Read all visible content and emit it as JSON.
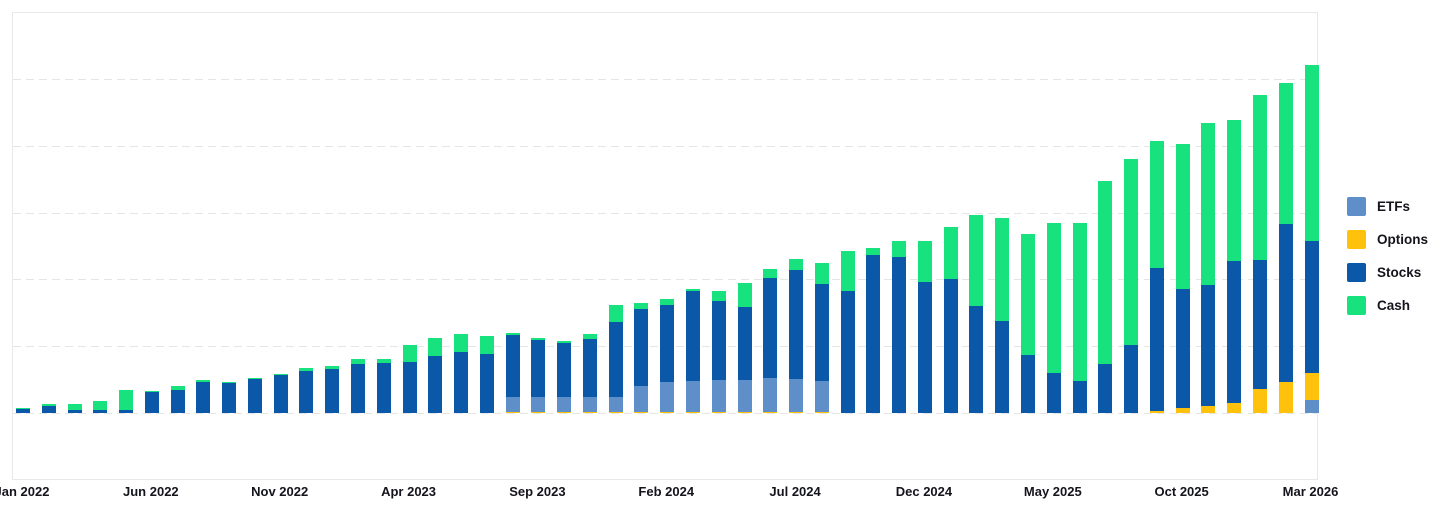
{
  "legend": {
    "items": [
      {
        "label": "ETFs",
        "color": "#5E8FC9"
      },
      {
        "label": "Options",
        "color": "#FFC20C"
      },
      {
        "label": "Stocks",
        "color": "#0B57A8"
      },
      {
        "label": "Cash",
        "color": "#17E27D"
      }
    ]
  },
  "chart_data": {
    "type": "bar",
    "stacked": true,
    "title": "",
    "xlabel": "",
    "ylabel": "",
    "y_axis": {
      "tick_labels_visible": false,
      "ylim": [
        -1,
        6
      ],
      "gridlines_at": [
        0,
        1,
        2,
        3,
        4,
        5
      ],
      "grid": true
    },
    "legend_position": "right",
    "series_colors": {
      "etfs": "#5E8FC9",
      "options": "#FFC20C",
      "stocks": "#0B57A8",
      "cash": "#17E27D"
    },
    "x_tick_labels": [
      "Jan 2022",
      "Jun 2022",
      "Nov 2022",
      "Apr 2023",
      "Sep 2023",
      "Feb 2024",
      "Jul 2024",
      "Dec 2024",
      "May 2025",
      "Oct 2025",
      "Mar 2026"
    ],
    "x_tick_every": 5,
    "bars": [
      {
        "month": "Jan 2022",
        "segments": [
          [
            "stocks",
            0.06
          ],
          [
            "cash",
            0.02
          ]
        ]
      },
      {
        "month": "Feb 2022",
        "segments": [
          [
            "stocks",
            0.1
          ],
          [
            "cash",
            0.03
          ]
        ]
      },
      {
        "month": "Mar 2022",
        "segments": [
          [
            "stocks",
            0.05
          ],
          [
            "cash",
            0.08
          ]
        ]
      },
      {
        "month": "Apr 2022",
        "segments": [
          [
            "stocks",
            0.05
          ],
          [
            "cash",
            0.13
          ]
        ]
      },
      {
        "month": "May 2022",
        "segments": [
          [
            "stocks",
            0.05
          ],
          [
            "cash",
            0.3
          ]
        ]
      },
      {
        "month": "Jun 2022",
        "segments": [
          [
            "stocks",
            0.31
          ],
          [
            "cash",
            0.02
          ]
        ]
      },
      {
        "month": "Jul 2022",
        "segments": [
          [
            "stocks",
            0.34
          ],
          [
            "cash",
            0.06
          ]
        ]
      },
      {
        "month": "Aug 2022",
        "segments": [
          [
            "stocks",
            0.46
          ],
          [
            "cash",
            0.03
          ]
        ]
      },
      {
        "month": "Sep 2022",
        "segments": [
          [
            "stocks",
            0.45
          ],
          [
            "cash",
            0.02
          ]
        ]
      },
      {
        "month": "Oct 2022",
        "segments": [
          [
            "stocks",
            0.51
          ],
          [
            "cash",
            0.02
          ]
        ]
      },
      {
        "month": "Nov 2022",
        "segments": [
          [
            "stocks",
            0.57
          ],
          [
            "cash",
            0.02
          ]
        ]
      },
      {
        "month": "Dec 2022",
        "segments": [
          [
            "stocks",
            0.63
          ],
          [
            "cash",
            0.05
          ]
        ]
      },
      {
        "month": "Jan 2023",
        "segments": [
          [
            "stocks",
            0.66
          ],
          [
            "cash",
            0.05
          ]
        ]
      },
      {
        "month": "Feb 2023",
        "segments": [
          [
            "stocks",
            0.73
          ],
          [
            "cash",
            0.08
          ]
        ]
      },
      {
        "month": "Mar 2023",
        "segments": [
          [
            "stocks",
            0.75
          ],
          [
            "cash",
            0.06
          ]
        ]
      },
      {
        "month": "Apr 2023",
        "segments": [
          [
            "stocks",
            0.77
          ],
          [
            "cash",
            0.25
          ]
        ]
      },
      {
        "month": "May 2023",
        "segments": [
          [
            "stocks",
            0.86
          ],
          [
            "cash",
            0.27
          ]
        ]
      },
      {
        "month": "Jun 2023",
        "segments": [
          [
            "stocks",
            0.92
          ],
          [
            "cash",
            0.26
          ]
        ]
      },
      {
        "month": "Jul 2023",
        "segments": [
          [
            "stocks",
            0.89
          ],
          [
            "cash",
            0.27
          ]
        ]
      },
      {
        "month": "Aug 2023",
        "segments": [
          [
            "options",
            0.02
          ],
          [
            "etfs",
            0.22
          ],
          [
            "stocks",
            0.93
          ],
          [
            "cash",
            0.03
          ]
        ]
      },
      {
        "month": "Sep 2023",
        "segments": [
          [
            "options",
            0.02
          ],
          [
            "etfs",
            0.22
          ],
          [
            "stocks",
            0.86
          ],
          [
            "cash",
            0.03
          ]
        ]
      },
      {
        "month": "Oct 2023",
        "segments": [
          [
            "options",
            0.02
          ],
          [
            "etfs",
            0.22
          ],
          [
            "stocks",
            0.81
          ],
          [
            "cash",
            0.03
          ]
        ]
      },
      {
        "month": "Nov 2023",
        "segments": [
          [
            "options",
            0.02
          ],
          [
            "etfs",
            0.22
          ],
          [
            "stocks",
            0.87
          ],
          [
            "cash",
            0.07
          ]
        ]
      },
      {
        "month": "Dec 2023",
        "segments": [
          [
            "options",
            0.02
          ],
          [
            "etfs",
            0.22
          ],
          [
            "stocks",
            1.12
          ],
          [
            "cash",
            0.26
          ]
        ]
      },
      {
        "month": "Jan 2024",
        "segments": [
          [
            "options",
            0.02
          ],
          [
            "etfs",
            0.39
          ],
          [
            "stocks",
            1.14
          ],
          [
            "cash",
            0.09
          ]
        ]
      },
      {
        "month": "Feb 2024",
        "segments": [
          [
            "options",
            0.02
          ],
          [
            "etfs",
            0.44
          ],
          [
            "stocks",
            1.16
          ],
          [
            "cash",
            0.09
          ]
        ]
      },
      {
        "month": "Mar 2024",
        "segments": [
          [
            "options",
            0.02
          ],
          [
            "etfs",
            0.46
          ],
          [
            "stocks",
            1.34
          ],
          [
            "cash",
            0.03
          ]
        ]
      },
      {
        "month": "Apr 2024",
        "segments": [
          [
            "options",
            0.02
          ],
          [
            "etfs",
            0.47
          ],
          [
            "stocks",
            1.19
          ],
          [
            "cash",
            0.15
          ]
        ]
      },
      {
        "month": "May 2024",
        "segments": [
          [
            "options",
            0.02
          ],
          [
            "etfs",
            0.48
          ],
          [
            "stocks",
            1.09
          ],
          [
            "cash",
            0.36
          ]
        ]
      },
      {
        "month": "Jun 2024",
        "segments": [
          [
            "options",
            0.02
          ],
          [
            "etfs",
            0.5
          ],
          [
            "stocks",
            1.5
          ],
          [
            "cash",
            0.13
          ]
        ]
      },
      {
        "month": "Jul 2024",
        "segments": [
          [
            "options",
            0.02
          ],
          [
            "etfs",
            0.49
          ],
          [
            "stocks",
            1.63
          ],
          [
            "cash",
            0.17
          ]
        ]
      },
      {
        "month": "Aug 2024",
        "segments": [
          [
            "options",
            0.02
          ],
          [
            "etfs",
            0.46
          ],
          [
            "stocks",
            1.45
          ],
          [
            "cash",
            0.32
          ]
        ]
      },
      {
        "month": "Sep 2024",
        "segments": [
          [
            "stocks",
            1.83
          ],
          [
            "cash",
            0.59
          ]
        ]
      },
      {
        "month": "Oct 2024",
        "segments": [
          [
            "stocks",
            2.37
          ],
          [
            "cash",
            0.1
          ]
        ]
      },
      {
        "month": "Nov 2024",
        "segments": [
          [
            "stocks",
            2.33
          ],
          [
            "cash",
            0.25
          ]
        ]
      },
      {
        "month": "Dec 2024",
        "segments": [
          [
            "stocks",
            1.96
          ],
          [
            "cash",
            0.62
          ]
        ]
      },
      {
        "month": "Jan 2025",
        "segments": [
          [
            "stocks",
            2.0
          ],
          [
            "cash",
            0.79
          ]
        ]
      },
      {
        "month": "Feb 2025",
        "segments": [
          [
            "stocks",
            1.6
          ],
          [
            "cash",
            1.37
          ]
        ]
      },
      {
        "month": "Mar 2025",
        "segments": [
          [
            "stocks",
            1.38
          ],
          [
            "cash",
            1.54
          ]
        ]
      },
      {
        "month": "Apr 2025",
        "segments": [
          [
            "stocks",
            0.87
          ],
          [
            "cash",
            1.81
          ]
        ]
      },
      {
        "month": "May 2025",
        "segments": [
          [
            "stocks",
            0.6
          ],
          [
            "cash",
            2.25
          ]
        ]
      },
      {
        "month": "Jun 2025",
        "segments": [
          [
            "stocks",
            0.48
          ],
          [
            "cash",
            2.37
          ]
        ]
      },
      {
        "month": "Jul 2025",
        "segments": [
          [
            "stocks",
            0.74
          ],
          [
            "cash",
            2.73
          ]
        ]
      },
      {
        "month": "Aug 2025",
        "segments": [
          [
            "stocks",
            1.02
          ],
          [
            "cash",
            2.78
          ]
        ]
      },
      {
        "month": "Sep 2025",
        "segments": [
          [
            "options",
            0.03
          ],
          [
            "stocks",
            2.14
          ],
          [
            "cash",
            1.9
          ]
        ]
      },
      {
        "month": "Oct 2025",
        "segments": [
          [
            "options",
            0.08
          ],
          [
            "stocks",
            1.77
          ],
          [
            "cash",
            2.18
          ]
        ]
      },
      {
        "month": "Nov 2025",
        "segments": [
          [
            "options",
            0.1
          ],
          [
            "stocks",
            1.82
          ],
          [
            "cash",
            2.42
          ]
        ]
      },
      {
        "month": "Dec 2025",
        "segments": [
          [
            "options",
            0.15
          ],
          [
            "stocks",
            2.13
          ],
          [
            "cash",
            2.11
          ]
        ]
      },
      {
        "month": "Jan 2026",
        "segments": [
          [
            "options",
            0.36
          ],
          [
            "stocks",
            1.93
          ],
          [
            "cash",
            2.47
          ]
        ]
      },
      {
        "month": "Feb 2026",
        "segments": [
          [
            "options",
            0.47
          ],
          [
            "stocks",
            2.36
          ],
          [
            "cash",
            2.11
          ]
        ]
      },
      {
        "month": "Mar 2026",
        "segments": [
          [
            "etfs",
            0.2
          ],
          [
            "options",
            0.4
          ],
          [
            "stocks",
            1.97
          ],
          [
            "cash",
            2.64
          ]
        ]
      }
    ]
  }
}
